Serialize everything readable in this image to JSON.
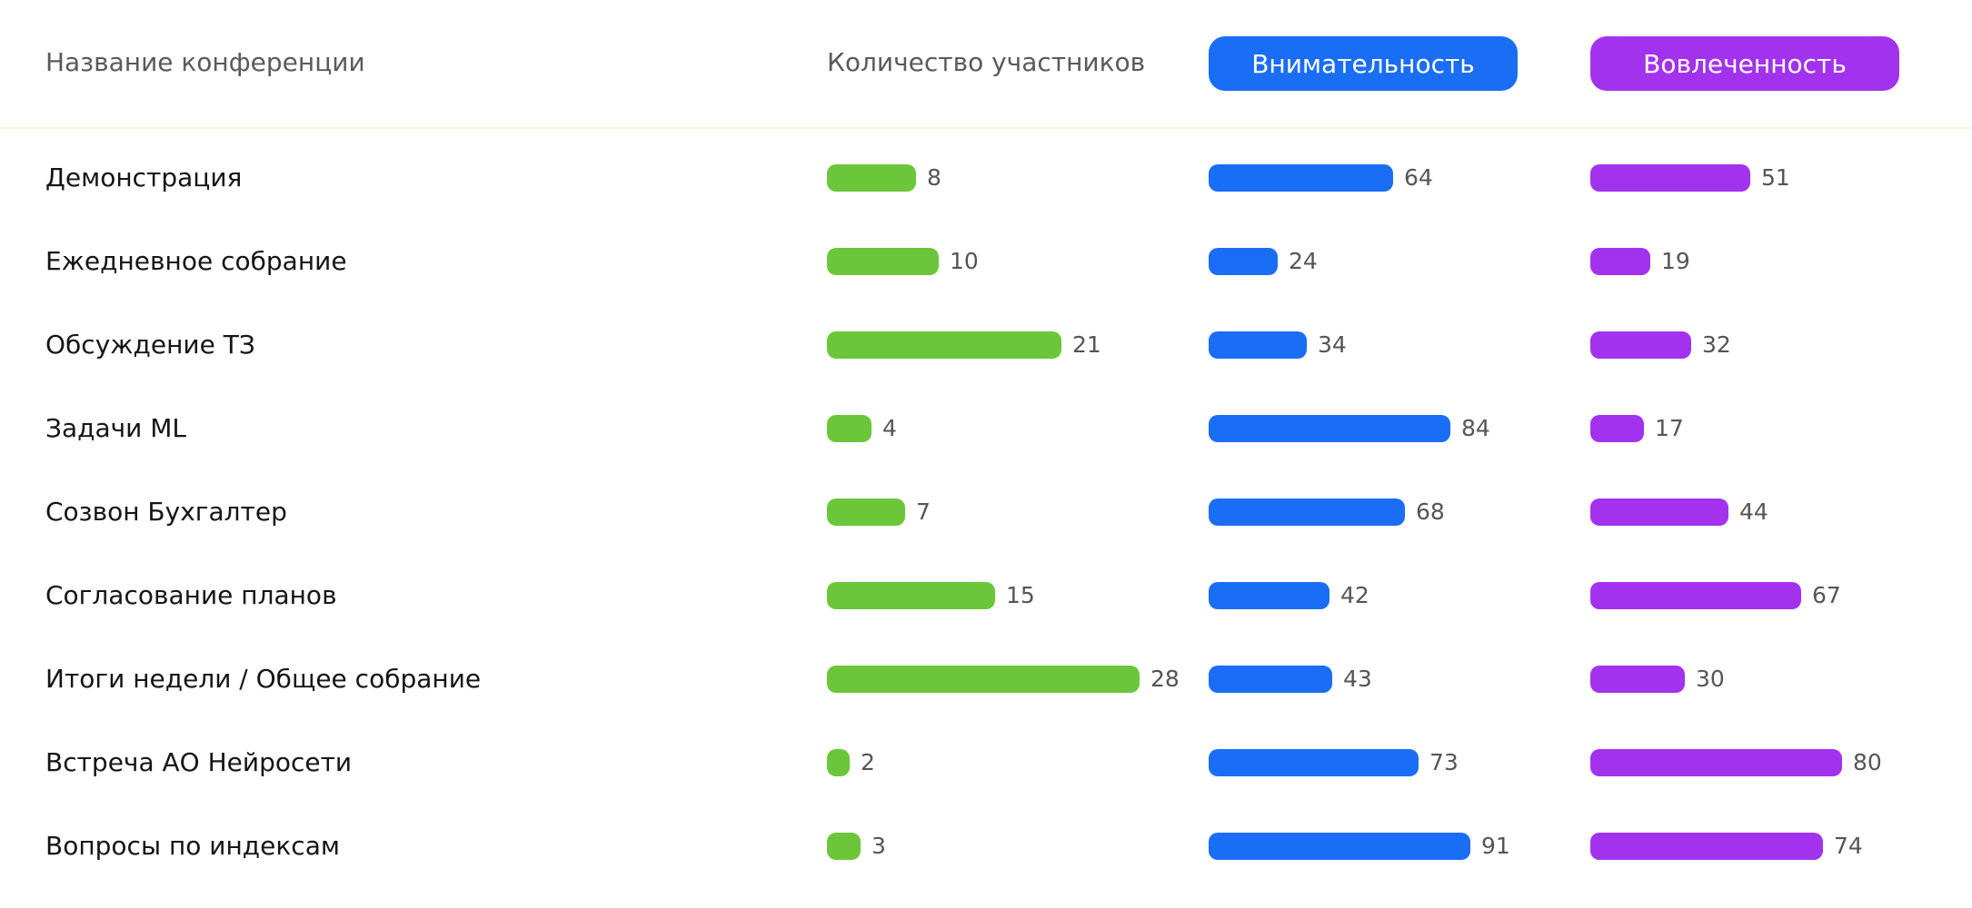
{
  "header": {
    "name_label": "Название конференции",
    "participants_label": "Количество участников",
    "attention_label": "Внимательность",
    "engagement_label": "Вовлеченность"
  },
  "colors": {
    "participants": "#6cc63a",
    "attention": "#1a6ef5",
    "engagement": "#a232ee",
    "header_divider": "#f7f8dc"
  },
  "chart_data": {
    "type": "bar",
    "title": "",
    "categories": [
      "Демонстрация",
      "Ежедневное собрание",
      "Обсуждение ТЗ",
      "Задачи ML",
      "Созвон Бухгалтер",
      "Согласование планов",
      "Итоги недели / Общее собрание",
      "Встреча АО Нейросети",
      "Вопросы по индексам"
    ],
    "series": [
      {
        "name": "Количество участников",
        "values": [
          8,
          10,
          21,
          4,
          7,
          15,
          28,
          2,
          3
        ]
      },
      {
        "name": "Внимательность",
        "values": [
          64,
          24,
          34,
          84,
          68,
          42,
          43,
          73,
          91
        ]
      },
      {
        "name": "Вовлеченность",
        "values": [
          51,
          19,
          32,
          17,
          44,
          67,
          30,
          80,
          74
        ]
      }
    ],
    "grid": false
  }
}
